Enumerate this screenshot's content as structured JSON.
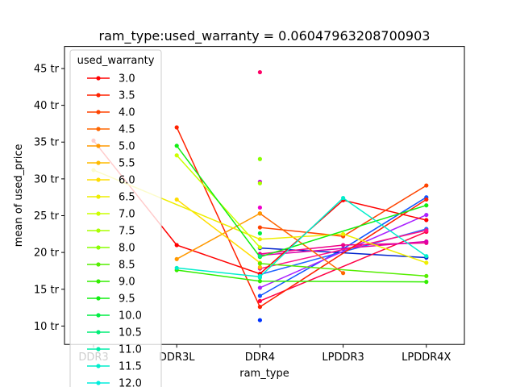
{
  "chart_data": {
    "type": "line",
    "title": "ram_type:used_warranty = 0.06047963208700903",
    "xlabel": "ram_type",
    "ylabel": "mean of used_price",
    "categories": [
      "DDR3",
      "DDR3L",
      "DDR4",
      "LPDDR3",
      "LPDDR4X"
    ],
    "ylim": [
      7.5,
      48.0
    ],
    "yticks": [
      10,
      15,
      20,
      25,
      30,
      35,
      40,
      45
    ],
    "ytick_labels": [
      "10 tr",
      "15 tr",
      "20 tr",
      "25 tr",
      "30 tr",
      "35 tr",
      "40 tr",
      "45 tr"
    ],
    "legend_title": "used_warranty",
    "legend_position": "upper-left",
    "series": [
      {
        "name": "3.0",
        "color": "#ff0000",
        "values": [
          35.2,
          21.0,
          17.1,
          27.1,
          24.4
        ]
      },
      {
        "name": "3.5",
        "color": "#ff2200",
        "values": [
          null,
          37.0,
          12.6,
          null,
          27.2
        ]
      },
      {
        "name": "4.0",
        "color": "#ff4400",
        "values": [
          null,
          null,
          23.4,
          22.2,
          29.1
        ]
      },
      {
        "name": "4.5",
        "color": "#ff6600",
        "values": [
          null,
          null,
          25.3,
          17.2,
          null
        ]
      },
      {
        "name": "5.0",
        "color": "#ff9900",
        "values": [
          null,
          19.1,
          25.3,
          null,
          null
        ]
      },
      {
        "name": "5.5",
        "color": "#ffbb00",
        "values": [
          null,
          null,
          18.0,
          null,
          null
        ]
      },
      {
        "name": "6.0",
        "color": "#ffdd00",
        "values": [
          null,
          27.2,
          18.6,
          null,
          null
        ]
      },
      {
        "name": "6.5",
        "color": "#eeee00",
        "values": [
          31.2,
          null,
          21.8,
          22.5,
          18.6
        ]
      },
      {
        "name": "7.0",
        "color": "#ccff00",
        "values": [
          null,
          33.2,
          20.7,
          null,
          null
        ]
      },
      {
        "name": "7.5",
        "color": "#aaff00",
        "values": [
          null,
          null,
          29.4,
          null,
          null
        ]
      },
      {
        "name": "8.0",
        "color": "#88ff00",
        "values": [
          null,
          null,
          32.7,
          null,
          null
        ]
      },
      {
        "name": "8.5",
        "color": "#55ee00",
        "values": [
          null,
          null,
          18.5,
          null,
          16.8
        ]
      },
      {
        "name": "9.0",
        "color": "#33ee00",
        "values": [
          null,
          17.6,
          16.1,
          null,
          16.0
        ]
      },
      {
        "name": "9.5",
        "color": "#11ee11",
        "values": [
          null,
          34.5,
          19.4,
          null,
          26.4
        ]
      },
      {
        "name": "10.0",
        "color": "#00ee44",
        "values": [
          null,
          null,
          22.6,
          null,
          null
        ]
      },
      {
        "name": "10.5",
        "color": "#00ee77",
        "values": [
          null,
          null,
          19.5,
          null,
          null
        ]
      },
      {
        "name": "11.0",
        "color": "#00eeaa",
        "values": [
          null,
          null,
          16.6,
          null,
          null
        ]
      },
      {
        "name": "11.5",
        "color": "#00eecc",
        "values": [
          null,
          17.9,
          16.7,
          27.4,
          19.5
        ]
      },
      {
        "name": "12.0",
        "color": "#00eedd",
        "values": [
          null,
          null,
          16.8,
          null,
          null
        ]
      }
    ],
    "extra_series": [
      {
        "color": "#0033ff",
        "values": [
          null,
          null,
          10.8,
          null,
          null
        ]
      },
      {
        "color": "#1155ff",
        "values": [
          null,
          null,
          14.1,
          20.5,
          27.5
        ]
      },
      {
        "color": "#2266ff",
        "values": [
          null,
          null,
          17.0,
          null,
          23.2
        ]
      },
      {
        "color": "#0022cc",
        "values": [
          null,
          null,
          20.6,
          null,
          19.3
        ]
      },
      {
        "color": "#aa22ff",
        "values": [
          null,
          null,
          15.2,
          null,
          25.1
        ]
      },
      {
        "color": "#cc00ee",
        "values": [
          null,
          null,
          29.6,
          null,
          null
        ]
      },
      {
        "color": "#ee00cc",
        "values": [
          null,
          null,
          26.1,
          null,
          null
        ]
      },
      {
        "color": "#ee0088",
        "values": [
          null,
          null,
          19.8,
          21.0,
          21.3
        ]
      },
      {
        "color": "#ff0066",
        "values": [
          null,
          null,
          44.5,
          null,
          null
        ]
      },
      {
        "color": "#ff0044",
        "values": [
          null,
          null,
          13.4,
          null,
          22.8
        ]
      },
      {
        "color": "#dd00aa",
        "values": [
          null,
          null,
          19.6,
          null,
          21.5
        ]
      },
      {
        "color": "#ff1188",
        "values": [
          null,
          null,
          17.8,
          null,
          23.0
        ]
      }
    ]
  }
}
